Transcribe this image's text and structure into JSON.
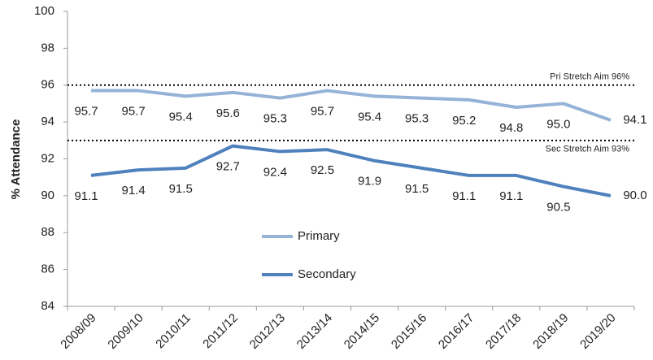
{
  "chart_data": {
    "type": "line",
    "y_label": "% Attendance",
    "categories": [
      "2008/09",
      "2009/10",
      "2010/11",
      "2011/12",
      "2012/13",
      "2013/14",
      "2014/15",
      "2015/16",
      "2016/17",
      "2017/18",
      "2018/19",
      "2019/20"
    ],
    "series": [
      {
        "name": "Primary",
        "color": "#95b3d7",
        "values": [
          95.7,
          95.7,
          95.4,
          95.6,
          95.3,
          95.7,
          95.4,
          95.3,
          95.2,
          94.8,
          95.0,
          94.1
        ],
        "value_labels": [
          "95.7",
          "95.7",
          "95.4",
          "95.6",
          "95.3",
          "95.7",
          "95.4",
          "95.3",
          "95.2",
          "94.8",
          "95.0",
          "94.1"
        ]
      },
      {
        "name": "Secondary",
        "color": "#4f81bd",
        "values": [
          91.1,
          91.4,
          91.5,
          92.7,
          92.4,
          92.5,
          91.9,
          91.5,
          91.1,
          91.1,
          90.5,
          90.0
        ],
        "value_labels": [
          "91.1",
          "91.4",
          "91.5",
          "92.7",
          "92.4",
          "92.5",
          "91.9",
          "91.5",
          "91.1",
          "91.1",
          "90.5",
          "90.0"
        ]
      }
    ],
    "reference_lines": [
      {
        "value": 96,
        "label": "Pri Stretch Aim 96%"
      },
      {
        "value": 93,
        "label": "Sec Stretch Aim 93%"
      }
    ],
    "ylim": [
      84,
      100
    ],
    "yticks": [
      84,
      86,
      88,
      90,
      92,
      94,
      96,
      98,
      100
    ],
    "grid": false
  }
}
